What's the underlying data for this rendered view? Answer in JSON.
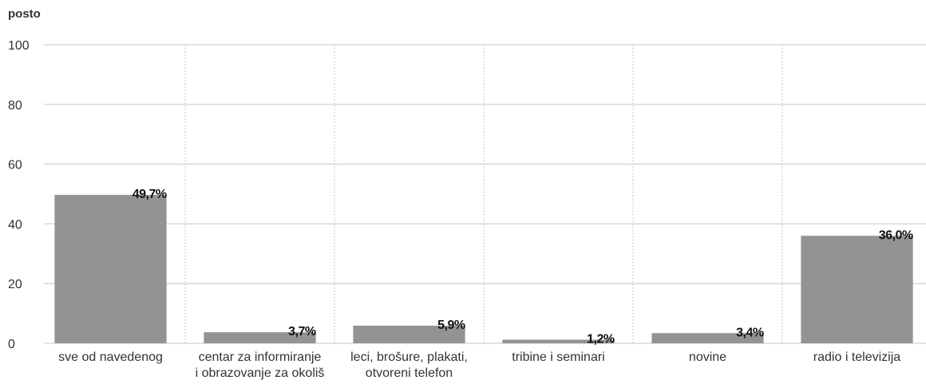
{
  "chart_data": {
    "type": "bar",
    "y_label": "posto",
    "categories": [
      "sve od navedenog",
      "centar za informiranje\ni obrazovanje za okoliš",
      "leci, brošure, plakati,\notvoreni telefon",
      "tribine i seminari",
      "novine",
      "radio i televizija"
    ],
    "values": [
      49.7,
      3.7,
      5.9,
      1.2,
      3.4,
      36.0
    ],
    "value_labels": [
      "49,7%",
      "3,7%",
      "5,9%",
      "1,2%",
      "3,4%",
      "36,0%"
    ],
    "color": "#939393",
    "ylim": [
      0,
      100
    ],
    "yticks": [
      0,
      20,
      40,
      60,
      80,
      100
    ],
    "grid": true
  }
}
